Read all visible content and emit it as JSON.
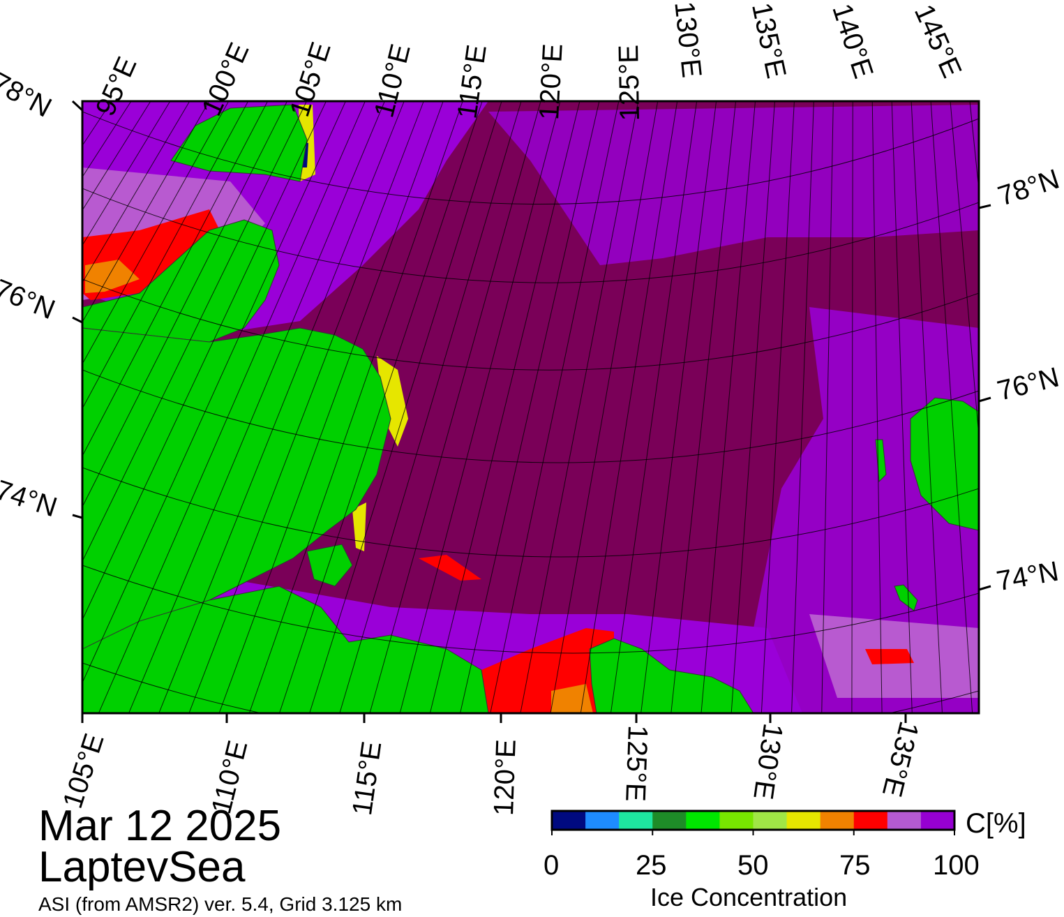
{
  "map": {
    "title_date": "Mar 12 2025",
    "region": "LaptevSea",
    "source": "ASI (from AMSR2) ver. 5.4,  Grid 3.125 km",
    "frame": {
      "top_lon_labels": [
        "95°E",
        "100°E",
        "105°E",
        "110°E",
        "115°E",
        "120°E",
        "125°E",
        "130°E",
        "135°E",
        "140°E",
        "145°E"
      ],
      "bottom_lon_labels": [
        "105°E",
        "110°E",
        "115°E",
        "120°E",
        "125°E",
        "130°E",
        "135°E"
      ],
      "left_lat_labels": [
        "78°N",
        "76°N",
        "74°N"
      ],
      "right_lat_labels": [
        "78°N",
        "76°N",
        "74°N"
      ]
    },
    "colors": {
      "land": "#00d000",
      "land_mask_gray": "#8c8c8c",
      "ice_100": "#7a0058",
      "ice_95": "#9a00d8",
      "ice_90": "#b85ad0",
      "ice_85": "#ff0000"
    }
  },
  "colorbar": {
    "unit": "C[%]",
    "title": "Ice Concentration",
    "ticks": [
      "0",
      "25",
      "50",
      "75",
      "100"
    ],
    "colors": [
      "#000a80",
      "#1e8cff",
      "#1ee6a0",
      "#1e8c28",
      "#00e600",
      "#78e600",
      "#a0e646",
      "#e6e600",
      "#f08200",
      "#ff0000",
      "#b45ad2",
      "#9600d2"
    ]
  }
}
